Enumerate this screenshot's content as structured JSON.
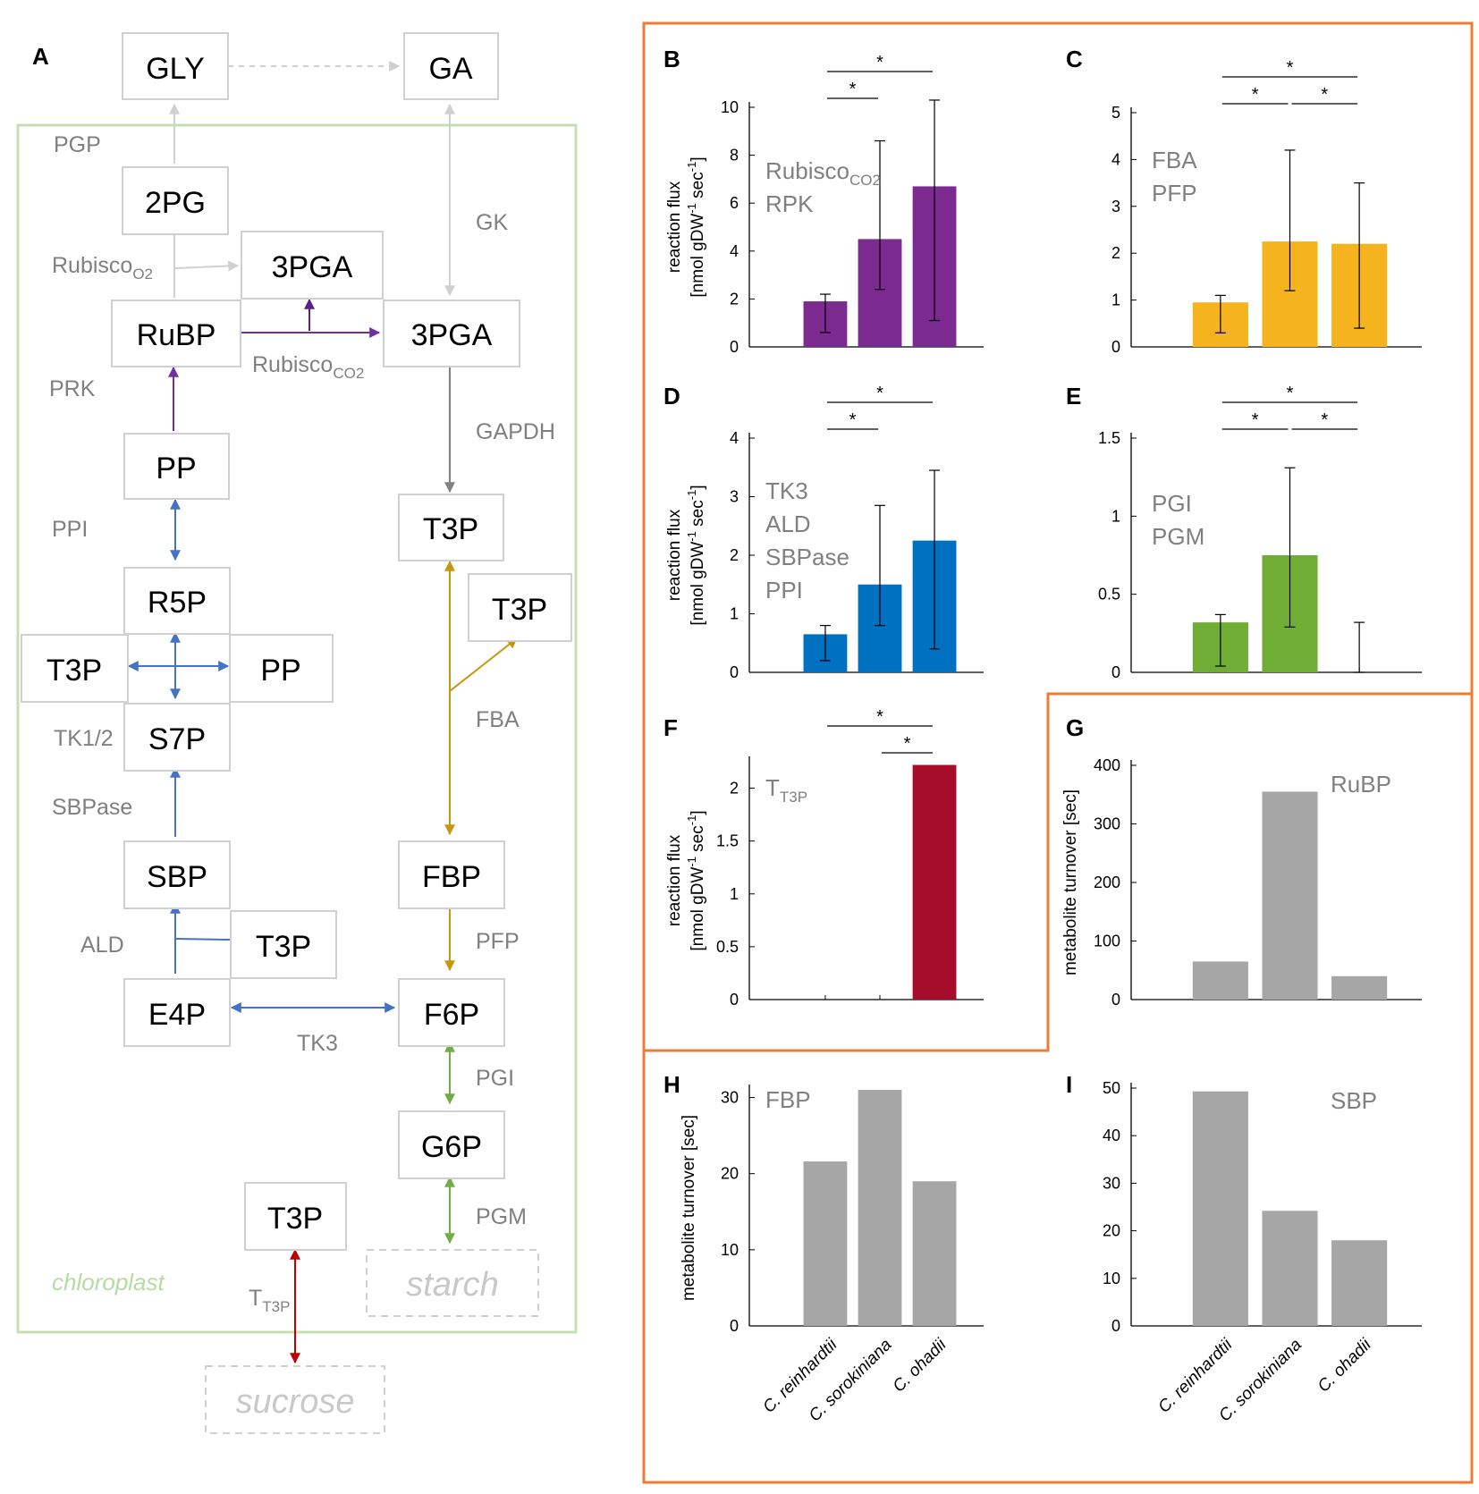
{
  "panel_a": {
    "letter": "A",
    "compartment_label": "chloroplast",
    "nodes": {
      "gly": "GLY",
      "ga": "GA",
      "pg2": "2PG",
      "pga3_top": "3PGA",
      "rubp": "RuBP",
      "pga3": "3PGA",
      "pp_top": "PP",
      "t3p_right": "T3P",
      "t3p_side": "T3P",
      "r5p": "R5P",
      "t3p_left": "T3P",
      "pp_mid": "PP",
      "s7p": "S7P",
      "sbp": "SBP",
      "fbp": "FBP",
      "t3p_ald": "T3P",
      "e4p": "E4P",
      "f6p": "F6P",
      "g6p": "G6P",
      "t3p_bottom": "T3P",
      "starch": "starch",
      "sucrose": "sucrose"
    },
    "enzymes": {
      "pgp": "PGP",
      "gk": "GK",
      "rubisco_o2": "Rubisco",
      "rubisco_o2_sub": "O2",
      "rubisco_co2": "Rubisco",
      "rubisco_co2_sub": "CO2",
      "prk": "PRK",
      "gapdh": "GAPDH",
      "ppi": "PPI",
      "fba": "FBA",
      "tk12": "TK1/2",
      "sbpase": "SBPase",
      "ald": "ALD",
      "pfp": "PFP",
      "tk3": "TK3",
      "pgi": "PGI",
      "pgm": "PGM",
      "tt3p": "T",
      "tt3p_sub": "T3P"
    },
    "colors": {
      "purple": "#7030a0",
      "purple_dark": "#5b1f88",
      "blue": "#4472c4",
      "gold": "#c89610",
      "green": "#70ad47",
      "gray_arrow": "#808080",
      "light_arrow": "#d0d0d0",
      "red": "#c00000",
      "chloroplast_border": "#c5e0b4"
    }
  },
  "species": [
    "C. reinhardtii",
    "C. sorokiniana",
    "C. ohadii"
  ],
  "flux_axis_title": {
    "line1": "reaction flux",
    "line2a": "[nmol gDW",
    "line2sup1": "-1",
    "line2b": " sec",
    "line2sup2": "-1",
    "line2c": "]"
  },
  "turnover_axis_title": "metabolite turnover [sec]",
  "sig_symbol": "*",
  "border_color": "#ed7d31",
  "chart_data": [
    {
      "id": "B",
      "letter": "B",
      "type": "bar",
      "color": "#7b2a90",
      "labels": [
        "Rubisco",
        "RPK"
      ],
      "label_sub": "CO2",
      "categories": [
        "C. reinhardtii",
        "C. sorokiniana",
        "C. ohadii"
      ],
      "values": [
        1.9,
        4.5,
        6.7
      ],
      "err_low": [
        0.6,
        2.4,
        1.1
      ],
      "err_high": [
        2.2,
        8.6,
        10.3
      ],
      "ylim": [
        0,
        10
      ],
      "yticks": [
        0,
        2,
        4,
        6,
        8,
        10
      ],
      "ylabel": "reaction flux [nmol gDW-1 sec-1]",
      "sig": [
        {
          "from": 0,
          "to": 1,
          "level": 1
        },
        {
          "from": 0,
          "to": 2,
          "level": 2
        }
      ]
    },
    {
      "id": "C",
      "letter": "C",
      "type": "bar",
      "color": "#f5b31e",
      "labels": [
        "FBA",
        "PFP"
      ],
      "label_sub": "",
      "categories": [
        "C. reinhardtii",
        "C. sorokiniana",
        "C. ohadii"
      ],
      "values": [
        0.95,
        2.25,
        2.2
      ],
      "err_low": [
        0.3,
        1.2,
        0.4
      ],
      "err_high": [
        1.1,
        4.2,
        3.5
      ],
      "ylim": [
        0,
        5
      ],
      "yticks": [
        0,
        1,
        2,
        3,
        4,
        5
      ],
      "ylabel": "",
      "sig": [
        {
          "from": 0,
          "to": 1,
          "level": 1
        },
        {
          "from": 1,
          "to": 2,
          "level": 1
        },
        {
          "from": 0,
          "to": 2,
          "level": 2
        }
      ]
    },
    {
      "id": "D",
      "letter": "D",
      "type": "bar",
      "color": "#0070c0",
      "labels": [
        "TK3",
        "ALD",
        "SBPase",
        "PPI"
      ],
      "label_sub": "",
      "categories": [
        "C. reinhardtii",
        "C. sorokiniana",
        "C. ohadii"
      ],
      "values": [
        0.65,
        1.5,
        2.25
      ],
      "err_low": [
        0.2,
        0.8,
        0.4
      ],
      "err_high": [
        0.8,
        2.85,
        3.45
      ],
      "ylim": [
        0,
        4
      ],
      "yticks": [
        0,
        1,
        2,
        3,
        4
      ],
      "ylabel": "reaction flux [nmol gDW-1 sec-1]",
      "sig": [
        {
          "from": 0,
          "to": 1,
          "level": 1
        },
        {
          "from": 0,
          "to": 2,
          "level": 2
        }
      ]
    },
    {
      "id": "E",
      "letter": "E",
      "type": "bar",
      "color": "#70ad34",
      "labels": [
        "PGI",
        "PGM"
      ],
      "label_sub": "",
      "categories": [
        "C. reinhardtii",
        "C. sorokiniana",
        "C. ohadii"
      ],
      "values": [
        0.32,
        0.75,
        0
      ],
      "err_low": [
        0.04,
        0.29,
        0
      ],
      "err_high": [
        0.37,
        1.31,
        0.32
      ],
      "ylim": [
        0,
        1.5
      ],
      "yticks": [
        0,
        0.5,
        1,
        1.5
      ],
      "ylabel": "",
      "sig": [
        {
          "from": 0,
          "to": 1,
          "level": 1
        },
        {
          "from": 1,
          "to": 2,
          "level": 1
        },
        {
          "from": 0,
          "to": 2,
          "level": 2
        }
      ]
    },
    {
      "id": "F",
      "letter": "F",
      "type": "bar",
      "color": "#a50d2a",
      "labels": [
        "T"
      ],
      "label_sub": "T3P",
      "categories": [
        "C. reinhardtii",
        "C. sorokiniana",
        "C. ohadii"
      ],
      "values": [
        0,
        0,
        2.22
      ],
      "err_low": null,
      "err_high": null,
      "ylim": [
        0,
        2.25
      ],
      "yticks": [
        0,
        0.5,
        1,
        1.5,
        2
      ],
      "ylabel": "reaction flux [nmol gDW-1 sec-1]",
      "sig": [
        {
          "from": 1,
          "to": 2,
          "level": 1
        },
        {
          "from": 0,
          "to": 2,
          "level": 2
        }
      ]
    },
    {
      "id": "G",
      "letter": "G",
      "type": "bar",
      "color": "#a6a6a6",
      "labels": [
        "RuBP"
      ],
      "label_sub": "",
      "categories": [
        "C. reinhardtii",
        "C. sorokiniana",
        "C. ohadii"
      ],
      "values": [
        65,
        355,
        40
      ],
      "err_low": null,
      "err_high": null,
      "ylim": [
        0,
        400
      ],
      "yticks": [
        0,
        100,
        200,
        300,
        400
      ],
      "ylabel": "metabolite turnover [sec]",
      "sig": []
    },
    {
      "id": "H",
      "letter": "H",
      "type": "bar",
      "color": "#a6a6a6",
      "labels": [
        "FBP"
      ],
      "label_sub": "",
      "categories": [
        "C. reinhardtii",
        "C. sorokiniana",
        "C. ohadii"
      ],
      "values": [
        21.6,
        31,
        19
      ],
      "err_low": null,
      "err_high": null,
      "ylim": [
        0,
        31
      ],
      "yticks": [
        0,
        10,
        20,
        30
      ],
      "ylabel": "metabolite turnover [sec]",
      "sig": []
    },
    {
      "id": "I",
      "letter": "I",
      "type": "bar",
      "color": "#a6a6a6",
      "labels": [
        "SBP"
      ],
      "label_sub": "",
      "categories": [
        "C. reinhardtii",
        "C. sorokiniana",
        "C. ohadii"
      ],
      "values": [
        49.3,
        24.2,
        18
      ],
      "err_low": null,
      "err_high": null,
      "ylim": [
        0,
        50
      ],
      "yticks": [
        0,
        10,
        20,
        30,
        40,
        50
      ],
      "ylabel": "",
      "sig": []
    }
  ]
}
